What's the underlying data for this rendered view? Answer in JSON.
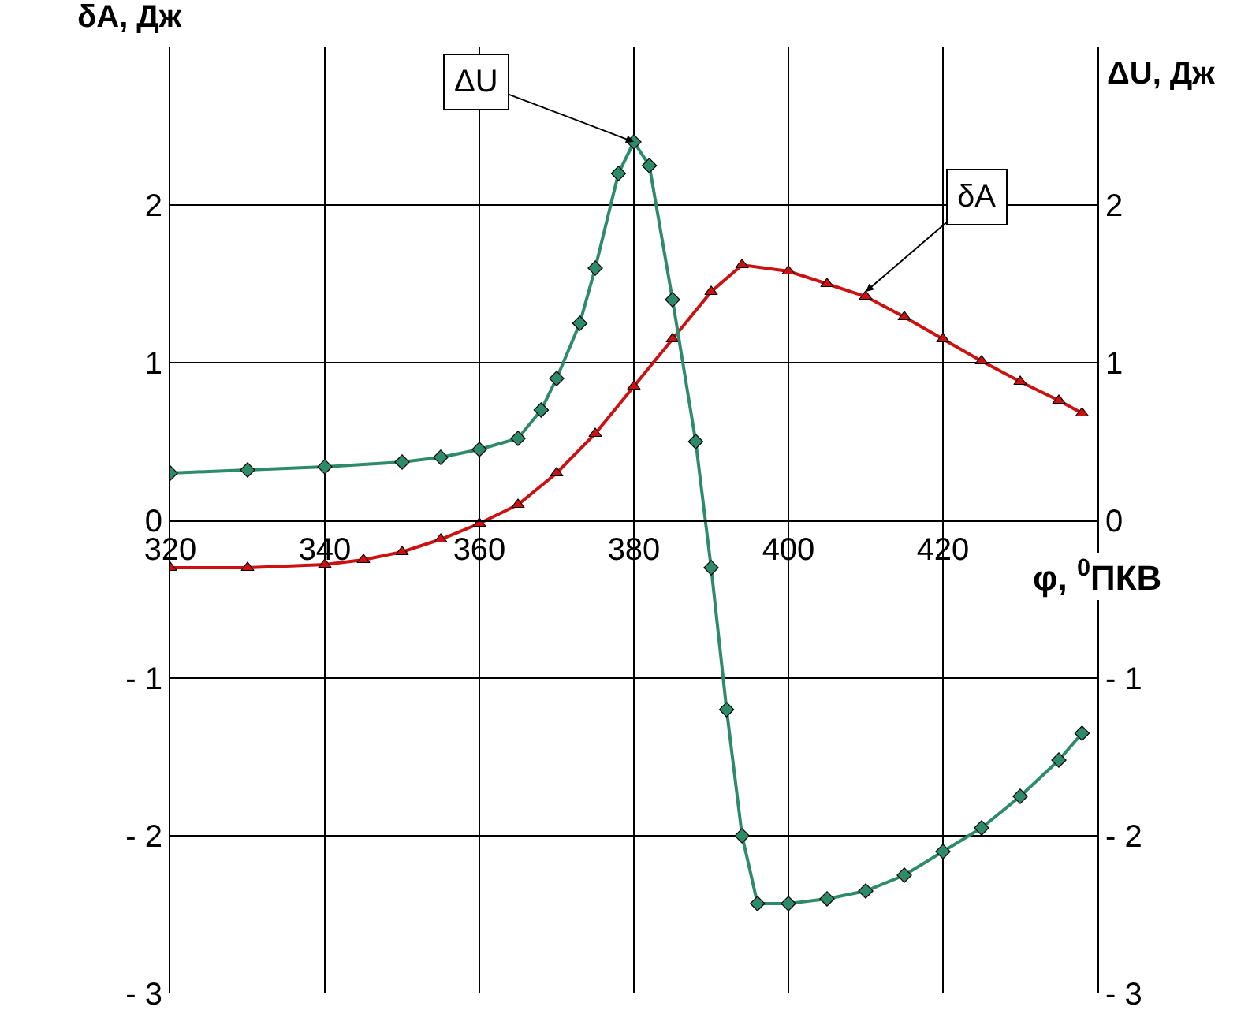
{
  "chart_data": {
    "type": "line",
    "ylabel": "δA, Дж",
    "y2label": "ΔU, Дж",
    "xlabel": "φ, $^{0}$ПКВ",
    "xlim": [
      320,
      440
    ],
    "xticks": [
      320,
      340,
      360,
      380,
      400,
      420,
      {
        "value": 440,
        "label": null
      }
    ],
    "ylim": [
      -3,
      3
    ],
    "yticks": [
      {
        "value": -3,
        "label": "- 3"
      },
      {
        "value": -2,
        "label": "- 2"
      },
      {
        "value": -1,
        "label": "- 1"
      },
      0,
      1,
      2
    ],
    "y2lim": [
      -3,
      3
    ],
    "y2ticks": [
      {
        "value": -3,
        "label": "- 3"
      },
      {
        "value": -2,
        "label": "- 2"
      },
      {
        "value": -1,
        "label": "- 1"
      },
      0,
      1,
      2
    ],
    "grid": true,
    "line_style": "solid",
    "series": [
      {
        "color": "#cc1111",
        "marker": "triangle",
        "x": [
          320,
          330,
          340,
          345,
          350,
          355,
          360,
          365,
          370,
          375,
          380,
          385,
          390,
          394,
          400,
          405,
          410,
          415,
          420,
          425,
          430,
          435,
          438
        ],
        "values": [
          -0.3,
          -0.3,
          -0.28,
          -0.25,
          -0.2,
          -0.12,
          -0.02,
          0.1,
          0.3,
          0.55,
          0.85,
          1.15,
          1.45,
          1.62,
          1.58,
          1.5,
          1.42,
          1.29,
          1.15,
          1.01,
          0.88,
          0.76,
          0.68
        ]
      },
      {
        "color": "#2e8b6a",
        "marker": "diamond",
        "axis": "y2",
        "x": [
          320,
          330,
          340,
          350,
          355,
          360,
          365,
          368,
          370,
          373,
          375,
          378,
          380,
          382,
          385,
          388,
          390,
          392,
          394,
          396,
          400,
          405,
          410,
          415,
          420,
          425,
          430,
          435,
          438
        ],
        "values": [
          0.3,
          0.32,
          0.34,
          0.37,
          0.4,
          0.45,
          0.52,
          0.7,
          0.9,
          1.25,
          1.6,
          2.2,
          2.4,
          2.25,
          1.4,
          0.5,
          -0.3,
          -1.2,
          -2.0,
          -2.43,
          -2.43,
          -2.4,
          -2.35,
          -2.25,
          -2.1,
          -1.95,
          -1.75,
          -1.52,
          -1.35
        ]
      }
    ],
    "annotations": [
      {
        "text": "ΔU",
        "x": 380,
        "y": 2.4
      },
      {
        "text": "δA",
        "x": 410,
        "y": 1.45
      }
    ]
  }
}
